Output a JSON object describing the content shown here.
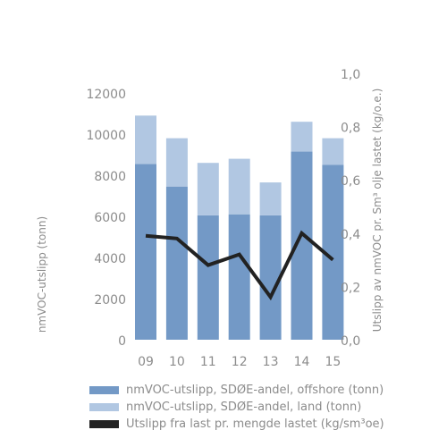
{
  "chart_data": {
    "type": "bar",
    "categories": [
      "09",
      "10",
      "11",
      "12",
      "13",
      "14",
      "15"
    ],
    "series": [
      {
        "name": "nmVOC-utslipp, SDØE-andel, offshore (tonn)",
        "type": "bar",
        "stack": "total",
        "color": "#7399c6",
        "values": [
          8550,
          7450,
          6050,
          6100,
          6050,
          9150,
          8500
        ]
      },
      {
        "name": "nmVOC-utslipp, SDØE-andel, land (tonn)",
        "type": "bar",
        "stack": "total",
        "color": "#b1c7e2",
        "values": [
          2350,
          2350,
          2550,
          2700,
          1600,
          1450,
          1300
        ]
      },
      {
        "name": "Utslipp fra last pr. mengde lastet (kg/sm³oe)",
        "type": "line",
        "axis": "right",
        "color": "#222222",
        "values": [
          0.39,
          0.38,
          0.28,
          0.32,
          0.16,
          0.4,
          0.3
        ]
      }
    ],
    "ylabel": "nmVOC-utslipp (tonn)",
    "y2label": "Utslipp av nmVOC pr. Sm³ olje lastet (kg/o.e.)",
    "ylim": [
      0,
      12000
    ],
    "y2lim": [
      0,
      1.0
    ],
    "yticks": [
      "0",
      "2000",
      "4000",
      "6000",
      "8000",
      "10000",
      "12000"
    ],
    "y2ticks": [
      "0,0",
      "0,2",
      "0,4",
      "0,6",
      "0,8",
      "1,0"
    ],
    "grid": false,
    "legend_position": "bottom"
  }
}
